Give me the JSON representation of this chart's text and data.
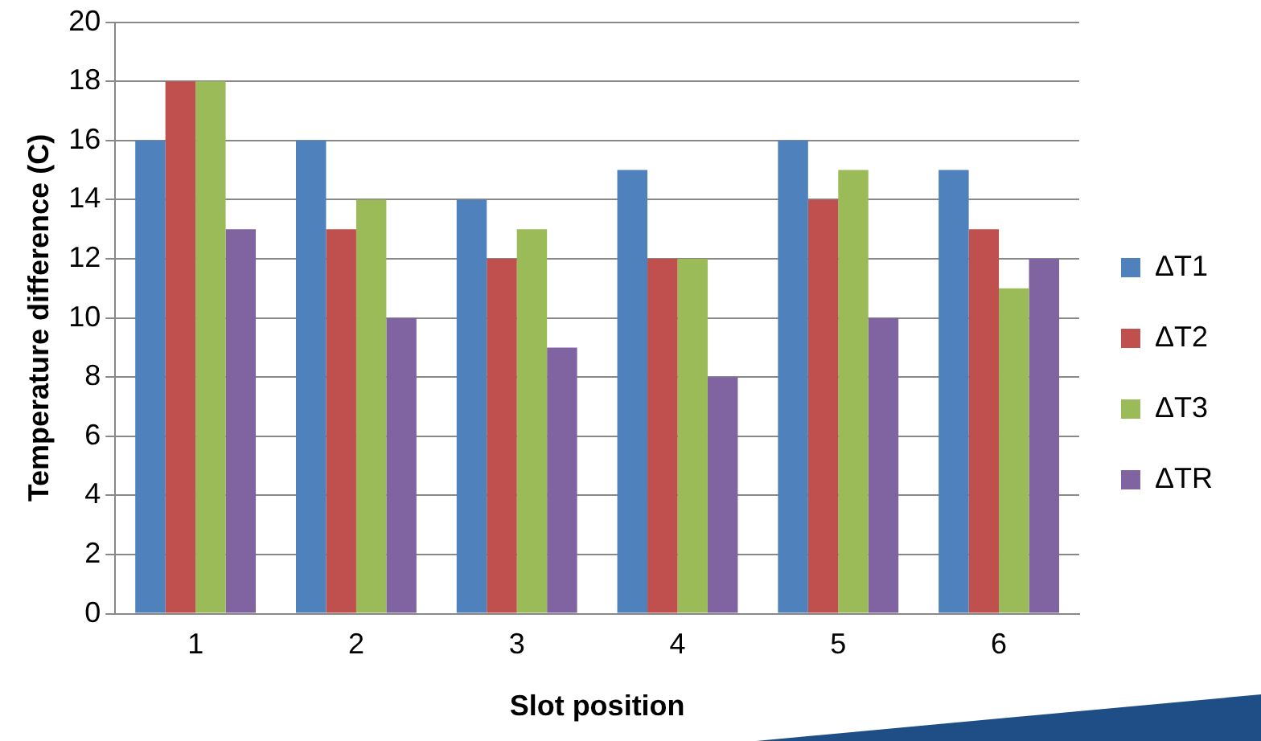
{
  "chart_data": {
    "type": "bar",
    "xlabel": "Slot position",
    "ylabel": "Temperature difference (C)",
    "categories": [
      "1",
      "2",
      "3",
      "4",
      "5",
      "6"
    ],
    "series": [
      {
        "name": "ΔT1",
        "color": "#4f81bd",
        "values": [
          16,
          16,
          14,
          15,
          16,
          15
        ]
      },
      {
        "name": "ΔT2",
        "color": "#c0504d",
        "values": [
          18,
          13,
          12,
          12,
          14,
          13
        ]
      },
      {
        "name": "ΔT3",
        "color": "#9bbb59",
        "values": [
          18,
          14,
          13,
          12,
          15,
          11
        ]
      },
      {
        "name": "ΔTR",
        "color": "#8064a2",
        "values": [
          13,
          10,
          9,
          8,
          10,
          12
        ]
      }
    ],
    "ylim": [
      0,
      20
    ],
    "yticks": [
      0,
      2,
      4,
      6,
      8,
      10,
      12,
      14,
      16,
      18,
      20
    ],
    "grid": "y",
    "legend": "right"
  }
}
